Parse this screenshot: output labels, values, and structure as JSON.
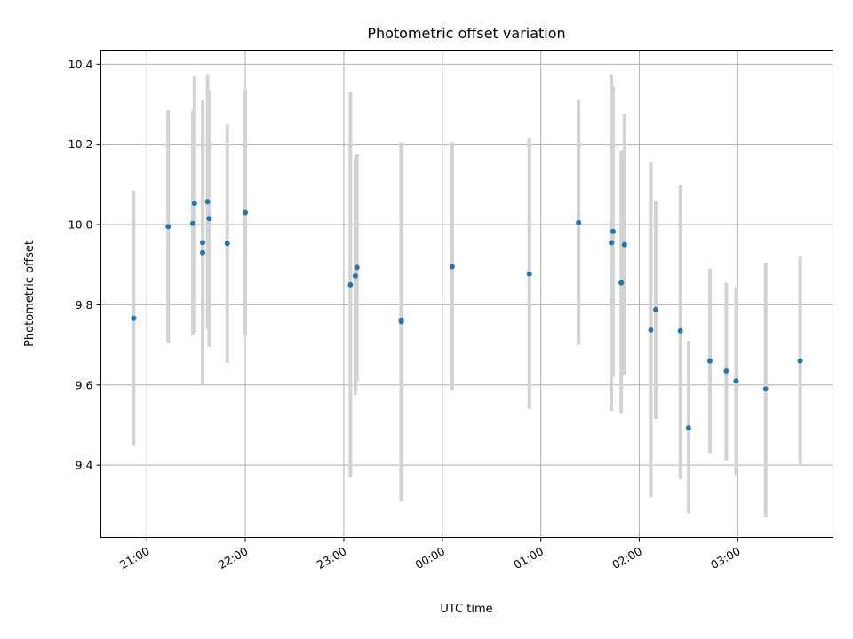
{
  "chart_data": {
    "type": "scatter",
    "title": "Photometric offset variation",
    "xlabel": "UTC time",
    "ylabel": "Photometric offset",
    "x_axis_type": "time",
    "xlim": [
      "20:32",
      "03:58"
    ],
    "ylim": [
      9.22,
      10.435
    ],
    "grid": true,
    "x_ticks": [
      {
        "label": "21:00",
        "time": "21:00"
      },
      {
        "label": "22:00",
        "time": "22:00"
      },
      {
        "label": "23:00",
        "time": "23:00"
      },
      {
        "label": "00:00",
        "time": "00:00"
      },
      {
        "label": "01:00",
        "time": "01:00"
      },
      {
        "label": "02:00",
        "time": "02:00"
      },
      {
        "label": "03:00",
        "time": "03:00"
      }
    ],
    "y_ticks": [
      {
        "label": "9.4",
        "value": 9.4
      },
      {
        "label": "9.6",
        "value": 9.6
      },
      {
        "label": "9.8",
        "value": 9.8
      },
      {
        "label": "10.0",
        "value": 10.0
      },
      {
        "label": "10.2",
        "value": 10.2
      },
      {
        "label": "10.4",
        "value": 10.4
      }
    ],
    "colors": {
      "points": "#1f77b4",
      "error_bars": "#d3d3d3"
    },
    "points": [
      {
        "time": "20:52",
        "y": 9.766,
        "lo": 9.45,
        "hi": 10.085
      },
      {
        "time": "21:13",
        "y": 9.995,
        "lo": 9.705,
        "hi": 10.285
      },
      {
        "time": "21:28",
        "y": 10.003,
        "lo": 9.725,
        "hi": 10.285
      },
      {
        "time": "21:29",
        "y": 10.053,
        "lo": 9.73,
        "hi": 10.37
      },
      {
        "time": "21:34",
        "y": 9.955,
        "lo": 9.6,
        "hi": 10.31
      },
      {
        "time": "21:34",
        "y": 9.93,
        "lo": 9.6,
        "hi": 10.265
      },
      {
        "time": "21:37",
        "y": 10.057,
        "lo": 9.74,
        "hi": 10.375
      },
      {
        "time": "21:38",
        "y": 10.015,
        "lo": 9.695,
        "hi": 10.335
      },
      {
        "time": "21:49",
        "y": 9.953,
        "lo": 9.655,
        "hi": 10.25
      },
      {
        "time": "22:00",
        "y": 10.03,
        "lo": 9.725,
        "hi": 10.335
      },
      {
        "time": "23:04",
        "y": 9.85,
        "lo": 9.37,
        "hi": 10.33
      },
      {
        "time": "23:07",
        "y": 9.872,
        "lo": 9.575,
        "hi": 10.165
      },
      {
        "time": "23:08",
        "y": 9.893,
        "lo": 9.61,
        "hi": 10.175
      },
      {
        "time": "23:35",
        "y": 9.758,
        "lo": 9.31,
        "hi": 10.205
      },
      {
        "time": "23:35",
        "y": 9.762,
        "lo": 9.32,
        "hi": 10.2
      },
      {
        "time": "00:06",
        "y": 9.895,
        "lo": 9.585,
        "hi": 10.205
      },
      {
        "time": "00:53",
        "y": 9.877,
        "lo": 9.54,
        "hi": 10.215
      },
      {
        "time": "01:23",
        "y": 10.005,
        "lo": 9.7,
        "hi": 10.31
      },
      {
        "time": "01:43",
        "y": 9.955,
        "lo": 9.535,
        "hi": 10.375
      },
      {
        "time": "01:44",
        "y": 9.983,
        "lo": 9.62,
        "hi": 10.345
      },
      {
        "time": "01:49",
        "y": 9.855,
        "lo": 9.53,
        "hi": 10.185
      },
      {
        "time": "01:51",
        "y": 9.95,
        "lo": 9.625,
        "hi": 10.275
      },
      {
        "time": "02:07",
        "y": 9.737,
        "lo": 9.32,
        "hi": 10.155
      },
      {
        "time": "02:10",
        "y": 9.788,
        "lo": 9.515,
        "hi": 10.06
      },
      {
        "time": "02:25",
        "y": 9.735,
        "lo": 9.365,
        "hi": 10.1
      },
      {
        "time": "02:30",
        "y": 9.493,
        "lo": 9.28,
        "hi": 9.71
      },
      {
        "time": "02:43",
        "y": 9.66,
        "lo": 9.43,
        "hi": 9.89
      },
      {
        "time": "02:53",
        "y": 9.635,
        "lo": 9.41,
        "hi": 9.855
      },
      {
        "time": "02:59",
        "y": 9.61,
        "lo": 9.375,
        "hi": 9.845
      },
      {
        "time": "03:17",
        "y": 9.59,
        "lo": 9.27,
        "hi": 9.905
      },
      {
        "time": "03:38",
        "y": 9.66,
        "lo": 9.4,
        "hi": 9.92
      }
    ]
  }
}
